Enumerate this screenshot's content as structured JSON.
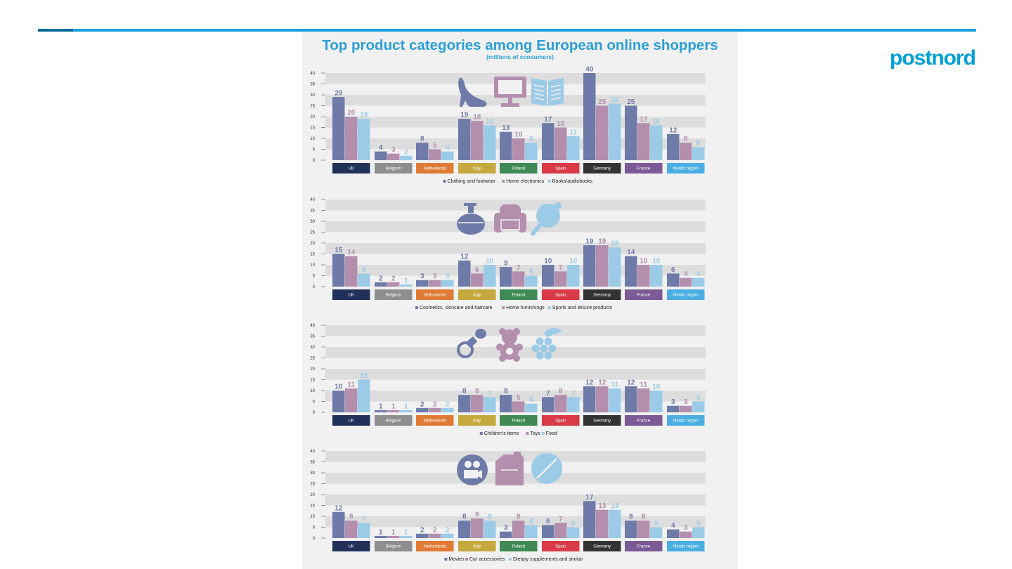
{
  "brand": "postnord",
  "colors": {
    "series": [
      "#6e7ba8",
      "#b38ead",
      "#9ccbe8"
    ],
    "stripe": "#dddddd",
    "rule": "#1aa1d9",
    "title": "#2a9fd8"
  },
  "countries": [
    {
      "name": "UK",
      "color": "#22315a"
    },
    {
      "name": "Belgium",
      "color": "#8e8e8e"
    },
    {
      "name": "Netherlands",
      "color": "#e07b35"
    },
    {
      "name": "Italy",
      "color": "#c6a93e"
    },
    {
      "name": "Poland",
      "color": "#3f8a54"
    },
    {
      "name": "Spain",
      "color": "#d83a46"
    },
    {
      "name": "Germany",
      "color": "#333333"
    },
    {
      "name": "France",
      "color": "#7b5a96"
    },
    {
      "name": "Nordic region",
      "color": "#4aaee3"
    }
  ],
  "chart_data": {
    "type": "bar",
    "title": "Top product categories among European online shoppers",
    "subtitle": "(millions of consumers)",
    "categories": [
      "UK",
      "Belgium",
      "Netherlands",
      "Italy",
      "Poland",
      "Spain",
      "Germany",
      "France",
      "Nordic region"
    ],
    "ylim": [
      0,
      40
    ],
    "yticks": [
      0,
      5,
      10,
      15,
      20,
      25,
      30,
      35,
      40
    ],
    "panels": [
      {
        "icons": [
          "shoe-icon",
          "monitor-icon",
          "book-icon"
        ],
        "series": [
          {
            "name": "Clothing and footwear",
            "values": [
              29,
              4,
              8,
              19,
              13,
              17,
              40,
              25,
              12
            ]
          },
          {
            "name": "Home electronics",
            "values": [
              20,
              3,
              5,
              18,
              10,
              15,
              25,
              17,
              8
            ]
          },
          {
            "name": "Books/audiobooks",
            "values": [
              19,
              2,
              4,
              16,
              8,
              11,
              26,
              16,
              6
            ]
          }
        ]
      },
      {
        "icons": [
          "perfume-bottle-icon",
          "armchair-icon",
          "ping-pong-paddle-icon"
        ],
        "series": [
          {
            "name": "Cosmetics, skincare and haircare",
            "values": [
              15,
              2,
              3,
              12,
              9,
              10,
              19,
              14,
              6
            ]
          },
          {
            "name": "Home furnishings",
            "values": [
              14,
              2,
              3,
              6,
              7,
              7,
              19,
              10,
              4
            ]
          },
          {
            "name": "Sports and leisure products",
            "values": [
              6,
              1,
              3,
              10,
              5,
              10,
              18,
              10,
              4
            ]
          }
        ]
      },
      {
        "icons": [
          "pacifier-icon",
          "teddy-bear-icon",
          "grapes-icon"
        ],
        "series": [
          {
            "name": "Children's items",
            "values": [
              10,
              1,
              2,
              8,
              8,
              7,
              12,
              12,
              3
            ]
          },
          {
            "name": "Toys",
            "values": [
              11,
              1,
              2,
              8,
              5,
              8,
              12,
              11,
              3
            ]
          },
          {
            "name": "Food",
            "values": [
              15,
              1,
              2,
              7,
              4,
              7,
              11,
              10,
              5
            ]
          }
        ]
      },
      {
        "icons": [
          "movie-camera-icon",
          "fuel-can-icon",
          "pill-icon"
        ],
        "series": [
          {
            "name": "Movies",
            "values": [
              12,
              1,
              2,
              8,
              3,
              6,
              17,
              8,
              4
            ]
          },
          {
            "name": "Car accessories",
            "values": [
              8,
              1,
              2,
              9,
              8,
              7,
              13,
              8,
              3
            ]
          },
          {
            "name": "Dietary supplements and similar",
            "values": [
              7,
              1,
              2,
              8,
              6,
              5,
              13,
              5,
              5
            ]
          }
        ]
      }
    ]
  }
}
